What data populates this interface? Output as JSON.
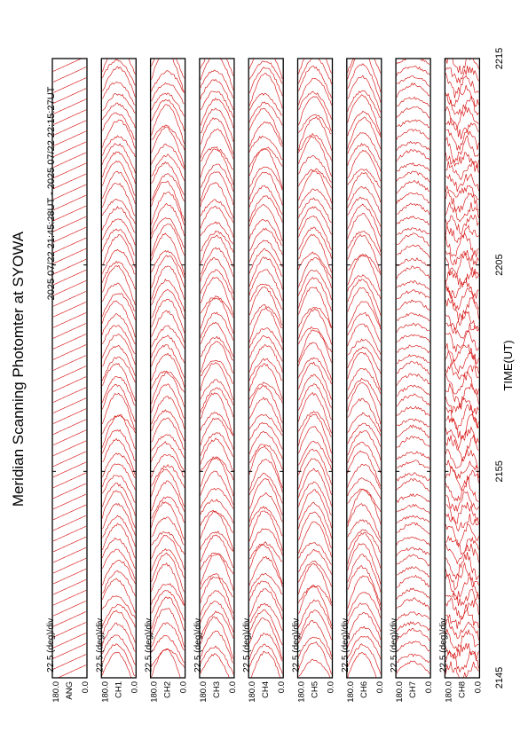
{
  "figure": {
    "title": "Meridian Scanning Photomter at SYOWA",
    "time_range": "2025 07/22 21:45:28UT - 2025 07/22 22:15:27UT",
    "xlabel": "TIME(UT)",
    "trace_color": "#d40000"
  },
  "chart_data": {
    "type": "line",
    "orientation": "rotated-90",
    "x_axis": {
      "label": "TIME(UT)",
      "range": [
        "2145",
        "2215"
      ],
      "ticks": [
        "2145",
        "2155",
        "2205",
        "2215"
      ]
    },
    "panels": [
      {
        "channel": "ANG",
        "scale": "22.5 (deg)/div",
        "ylim": [
          0.0,
          180.0
        ],
        "ytick_labels": [
          "0.0",
          "180.0"
        ],
        "profile": "sawtooth"
      },
      {
        "channel": "CH1",
        "scale": "22.5 (deg)/div",
        "ylim": [
          0.0,
          180.0
        ],
        "ytick_labels": [
          "0.0",
          "180.0"
        ],
        "profile": "scan"
      },
      {
        "channel": "CH2",
        "scale": "22.5 (deg)/div",
        "ylim": [
          0.0,
          180.0
        ],
        "ytick_labels": [
          "0.0",
          "180.0"
        ],
        "profile": "scan"
      },
      {
        "channel": "CH3",
        "scale": "22.5 (deg)/div",
        "ylim": [
          0.0,
          180.0
        ],
        "ytick_labels": [
          "0.0",
          "180.0"
        ],
        "profile": "scan"
      },
      {
        "channel": "CH4",
        "scale": "22.5 (deg)/div",
        "ylim": [
          0.0,
          180.0
        ],
        "ytick_labels": [
          "0.0",
          "180.0"
        ],
        "profile": "scan"
      },
      {
        "channel": "CH5",
        "scale": "22.5 (deg)/div",
        "ylim": [
          0.0,
          180.0
        ],
        "ytick_labels": [
          "0.0",
          "180.0"
        ],
        "profile": "scan"
      },
      {
        "channel": "CH6",
        "scale": "22.5 (deg)/div",
        "ylim": [
          0.0,
          180.0
        ],
        "ytick_labels": [
          "0.0",
          "180.0"
        ],
        "profile": "scan"
      },
      {
        "channel": "CH7",
        "scale": "22.5 (deg)/div",
        "ylim": [
          0.0,
          180.0
        ],
        "ytick_labels": [
          "0.0",
          "180.0"
        ],
        "profile": "flat"
      },
      {
        "channel": "CH8",
        "scale": "22.5 (deg)/div",
        "ylim": [
          0.0,
          180.0
        ],
        "ytick_labels": [
          "0.0",
          "180.0"
        ],
        "profile": "noisy"
      }
    ],
    "scan_count": 58,
    "grid": false,
    "legend": "none"
  }
}
